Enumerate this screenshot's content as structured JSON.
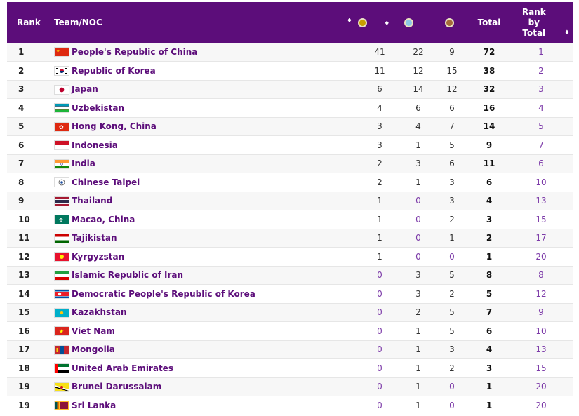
{
  "header": {
    "rank": "Rank",
    "team": "Team/NOC",
    "total": "Total",
    "rank_by_total_1": "Rank",
    "rank_by_total_2": "by",
    "rank_by_total_3": "Total",
    "sort_icon": "♦",
    "medal_colors": {
      "gold": "#c9a000",
      "silver": "#8cc7e6",
      "bronze": "#a66a3a"
    }
  },
  "rows": [
    {
      "rank": "1",
      "team": "People's Republic of China",
      "flag": "china",
      "gold": "41",
      "silver": "22",
      "bronze": "9",
      "total": "72",
      "rbt": "1"
    },
    {
      "rank": "2",
      "team": "Republic of Korea",
      "flag": "korea",
      "gold": "11",
      "silver": "12",
      "bronze": "15",
      "total": "38",
      "rbt": "2"
    },
    {
      "rank": "3",
      "team": "Japan",
      "flag": "japan",
      "gold": "6",
      "silver": "14",
      "bronze": "12",
      "total": "32",
      "rbt": "3"
    },
    {
      "rank": "4",
      "team": "Uzbekistan",
      "flag": "uzbekistan",
      "gold": "4",
      "silver": "6",
      "bronze": "6",
      "total": "16",
      "rbt": "4"
    },
    {
      "rank": "5",
      "team": "Hong Kong, China",
      "flag": "hongkong",
      "gold": "3",
      "silver": "4",
      "bronze": "7",
      "total": "14",
      "rbt": "5"
    },
    {
      "rank": "6",
      "team": "Indonesia",
      "flag": "indonesia",
      "gold": "3",
      "silver": "1",
      "bronze": "5",
      "total": "9",
      "rbt": "7"
    },
    {
      "rank": "7",
      "team": "India",
      "flag": "india",
      "gold": "2",
      "silver": "3",
      "bronze": "6",
      "total": "11",
      "rbt": "6"
    },
    {
      "rank": "8",
      "team": "Chinese Taipei",
      "flag": "taipei",
      "gold": "2",
      "silver": "1",
      "bronze": "3",
      "total": "6",
      "rbt": "10"
    },
    {
      "rank": "9",
      "team": "Thailand",
      "flag": "thailand",
      "gold": "1",
      "silver": "0",
      "bronze": "3",
      "total": "4",
      "rbt": "13"
    },
    {
      "rank": "10",
      "team": "Macao, China",
      "flag": "macao",
      "gold": "1",
      "silver": "0",
      "bronze": "2",
      "total": "3",
      "rbt": "15"
    },
    {
      "rank": "11",
      "team": "Tajikistan",
      "flag": "tajikistan",
      "gold": "1",
      "silver": "0",
      "bronze": "1",
      "total": "2",
      "rbt": "17"
    },
    {
      "rank": "12",
      "team": "Kyrgyzstan",
      "flag": "kyrgyzstan",
      "gold": "1",
      "silver": "0",
      "bronze": "0",
      "total": "1",
      "rbt": "20"
    },
    {
      "rank": "13",
      "team": "Islamic Republic of Iran",
      "flag": "iran",
      "gold": "0",
      "silver": "3",
      "bronze": "5",
      "total": "8",
      "rbt": "8"
    },
    {
      "rank": "14",
      "team": "Democratic People's Republic of Korea",
      "flag": "dprk",
      "gold": "0",
      "silver": "3",
      "bronze": "2",
      "total": "5",
      "rbt": "12"
    },
    {
      "rank": "15",
      "team": "Kazakhstan",
      "flag": "kazakhstan",
      "gold": "0",
      "silver": "2",
      "bronze": "5",
      "total": "7",
      "rbt": "9"
    },
    {
      "rank": "16",
      "team": "Viet Nam",
      "flag": "vietnam",
      "gold": "0",
      "silver": "1",
      "bronze": "5",
      "total": "6",
      "rbt": "10"
    },
    {
      "rank": "17",
      "team": "Mongolia",
      "flag": "mongolia",
      "gold": "0",
      "silver": "1",
      "bronze": "3",
      "total": "4",
      "rbt": "13"
    },
    {
      "rank": "18",
      "team": "United Arab Emirates",
      "flag": "uae",
      "gold": "0",
      "silver": "1",
      "bronze": "2",
      "total": "3",
      "rbt": "15"
    },
    {
      "rank": "19",
      "team": "Brunei Darussalam",
      "flag": "brunei",
      "gold": "0",
      "silver": "1",
      "bronze": "0",
      "total": "1",
      "rbt": "20"
    },
    {
      "rank": "19",
      "team": "Sri Lanka",
      "flag": "srilanka",
      "gold": "0",
      "silver": "1",
      "bronze": "0",
      "total": "1",
      "rbt": "20"
    }
  ]
}
